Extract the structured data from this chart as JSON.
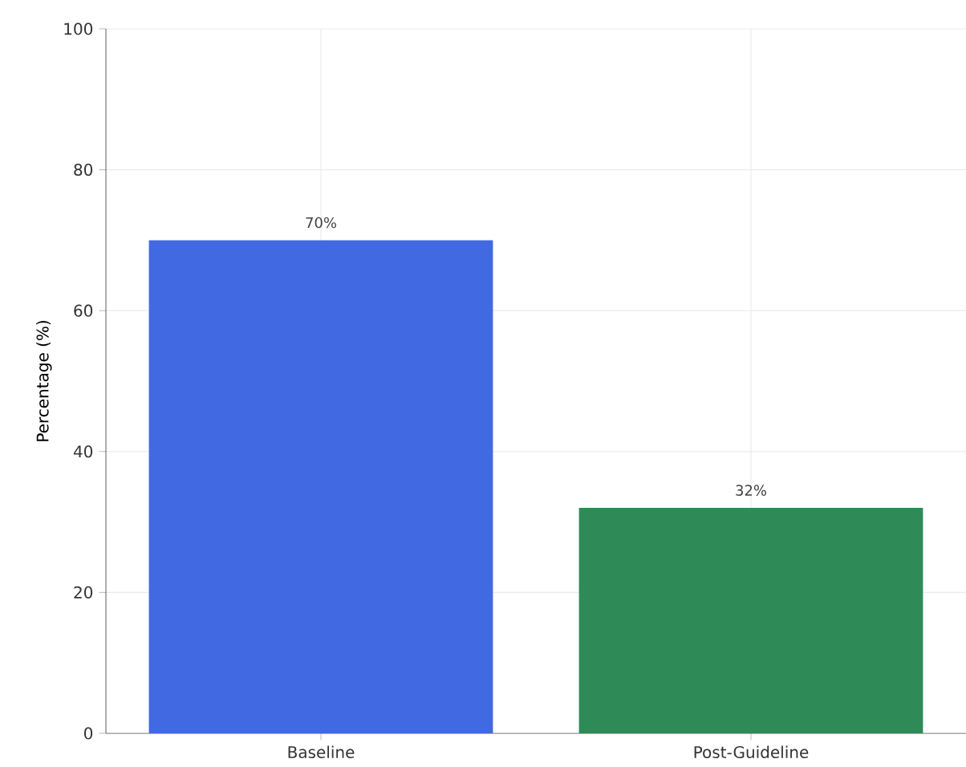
{
  "chart_data": {
    "type": "bar",
    "ylabel": "Percentage (%)",
    "categories": [
      "Baseline",
      "Post-Guideline"
    ],
    "values": [
      70,
      32
    ],
    "colors": [
      "#4169e1",
      "#2e8b57"
    ],
    "value_labels": [
      "70%",
      "32%"
    ],
    "ylim": [
      0,
      100
    ],
    "yticks": [
      0,
      20,
      40,
      60,
      80,
      100
    ],
    "grid": true
  }
}
